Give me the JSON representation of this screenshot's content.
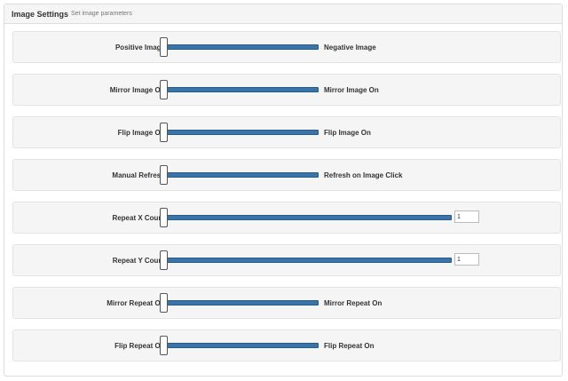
{
  "panel": {
    "title": "Image Settings",
    "subtitle": "Set image parameters"
  },
  "rows": [
    {
      "left": "Positive Image",
      "right": "Negative Image",
      "type": "toggle"
    },
    {
      "left": "Mirror Image Off",
      "right": "Mirror Image On",
      "type": "toggle"
    },
    {
      "left": "Flip Image Off",
      "right": "Flip Image On",
      "type": "toggle"
    },
    {
      "left": "Manual Refresh",
      "right": "Refresh on Image Click",
      "type": "toggle"
    },
    {
      "left": "Repeat X Count",
      "type": "range",
      "value": "1"
    },
    {
      "left": "Repeat Y Count",
      "type": "range",
      "value": "1"
    },
    {
      "left": "Mirror Repeat Off",
      "right": "Mirror Repeat On",
      "type": "toggle"
    },
    {
      "left": "Flip Repeat Off",
      "right": "Flip Repeat On",
      "type": "toggle"
    }
  ],
  "colors": {
    "track": "#3a74a8",
    "panel_bg": "#f5f5f5"
  }
}
